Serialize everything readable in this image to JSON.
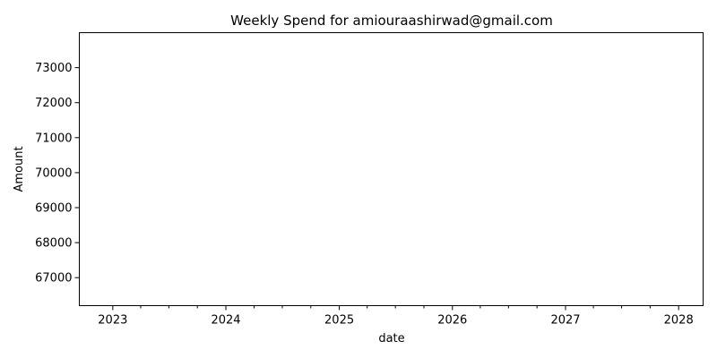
{
  "chart_data": {
    "type": "line",
    "title": "Weekly Spend for amiouraashirwad@gmail.com",
    "xlabel": "date",
    "ylabel": "Amount",
    "x_ticks": [
      "2023",
      "2024",
      "2025",
      "2026",
      "2027",
      "2028"
    ],
    "x_minor_ticks": [
      "2023-04",
      "2023-07",
      "2023-10",
      "2024-04",
      "2024-07",
      "2024-10",
      "2025-04",
      "2025-07",
      "2025-10",
      "2026-04",
      "2026-07",
      "2026-10",
      "2027-04",
      "2027-07",
      "2027-10"
    ],
    "y_ticks": [
      67000,
      68000,
      69000,
      70000,
      71000,
      72000,
      73000
    ],
    "xlim": [
      "2022-09-15",
      "2028-03-20"
    ],
    "ylim": [
      66200,
      74000
    ],
    "grid": false,
    "series": [],
    "colors": {
      "axis": "#000000",
      "background": "#ffffff"
    }
  }
}
